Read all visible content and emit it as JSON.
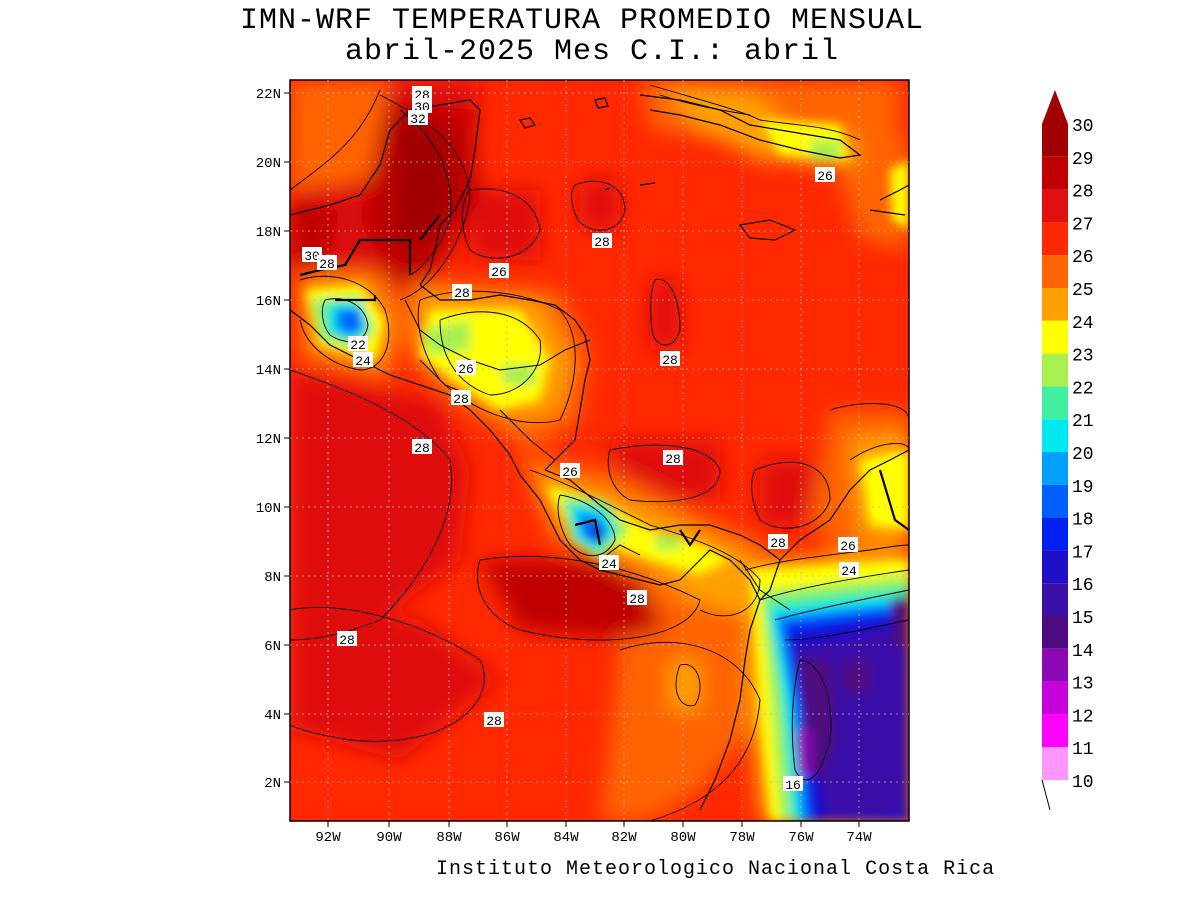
{
  "title_line1": "IMN-WRF  TEMPERATURA PROMEDIO MENSUAL",
  "title_line2": "abril-2025 Mes C.I.: abril",
  "footer": "Instituto Meteorologico Nacional Costa Rica",
  "lat_labels": [
    "22N",
    "20N",
    "18N",
    "16N",
    "14N",
    "12N",
    "10N",
    "8N",
    "6N",
    "4N",
    "2N"
  ],
  "lon_labels": [
    "92W",
    "90W",
    "88W",
    "86W",
    "84W",
    "82W",
    "80W",
    "78W",
    "76W",
    "74W"
  ],
  "colorbar": [
    {
      "value": "30",
      "color": "#a00000"
    },
    {
      "value": "29",
      "color": "#c00000"
    },
    {
      "value": "28",
      "color": "#e01010"
    },
    {
      "value": "27",
      "color": "#ff2800"
    },
    {
      "value": "26",
      "color": "#ff6400"
    },
    {
      "value": "25",
      "color": "#ffa000"
    },
    {
      "value": "24",
      "color": "#ffff00"
    },
    {
      "value": "23",
      "color": "#a8f050"
    },
    {
      "value": "22",
      "color": "#40f0a0"
    },
    {
      "value": "21",
      "color": "#00e8f0"
    },
    {
      "value": "20",
      "color": "#00a0ff"
    },
    {
      "value": "19",
      "color": "#0060ff"
    },
    {
      "value": "18",
      "color": "#0020f0"
    },
    {
      "value": "17",
      "color": "#1e10c8"
    },
    {
      "value": "16",
      "color": "#3a10a8"
    },
    {
      "value": "15",
      "color": "#500a80"
    },
    {
      "value": "14",
      "color": "#8c0ab4"
    },
    {
      "value": "13",
      "color": "#c800dc"
    },
    {
      "value": "12",
      "color": "#ff00ff"
    },
    {
      "value": "11",
      "color": "#ff50ff"
    },
    {
      "value": "10",
      "color": "#ff96ff"
    }
  ],
  "contour_labels": [
    "28",
    "30",
    "32",
    "30",
    "28",
    "26",
    "28",
    "28",
    "22",
    "24",
    "26",
    "28",
    "28",
    "28",
    "26",
    "28",
    "24",
    "28",
    "28",
    "26",
    "24",
    "28",
    "28",
    "16",
    "26"
  ]
}
